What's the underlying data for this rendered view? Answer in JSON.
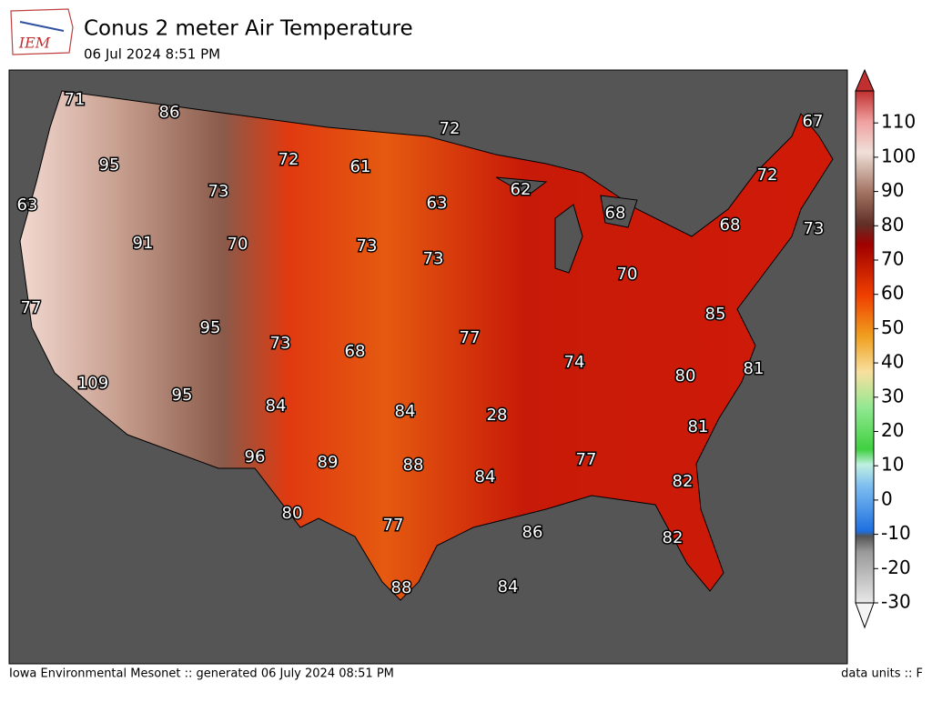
{
  "header": {
    "logo": "IEM",
    "title": "Conus 2 meter Air Temperature",
    "subtitle": "06 Jul 2024 8:51 PM"
  },
  "colorbar": {
    "ticks": [
      -30,
      -20,
      -10,
      0,
      10,
      20,
      30,
      40,
      50,
      60,
      70,
      80,
      90,
      100,
      110
    ]
  },
  "map": {
    "labels": [
      71,
      86,
      72,
      67,
      95,
      72,
      61,
      72,
      63,
      73,
      63,
      62,
      68,
      68,
      91,
      70,
      73,
      73,
      70,
      73,
      85,
      77,
      95,
      73,
      68,
      77,
      74,
      80,
      81,
      109,
      95,
      84,
      84,
      28,
      81,
      96,
      89,
      88,
      84,
      77,
      82,
      80,
      77,
      86,
      82,
      88,
      84
    ]
  },
  "footer": {
    "left": "Iowa Environmental Mesonet :: generated 06 July 2024 08:51 PM",
    "right": "data units :: F"
  }
}
